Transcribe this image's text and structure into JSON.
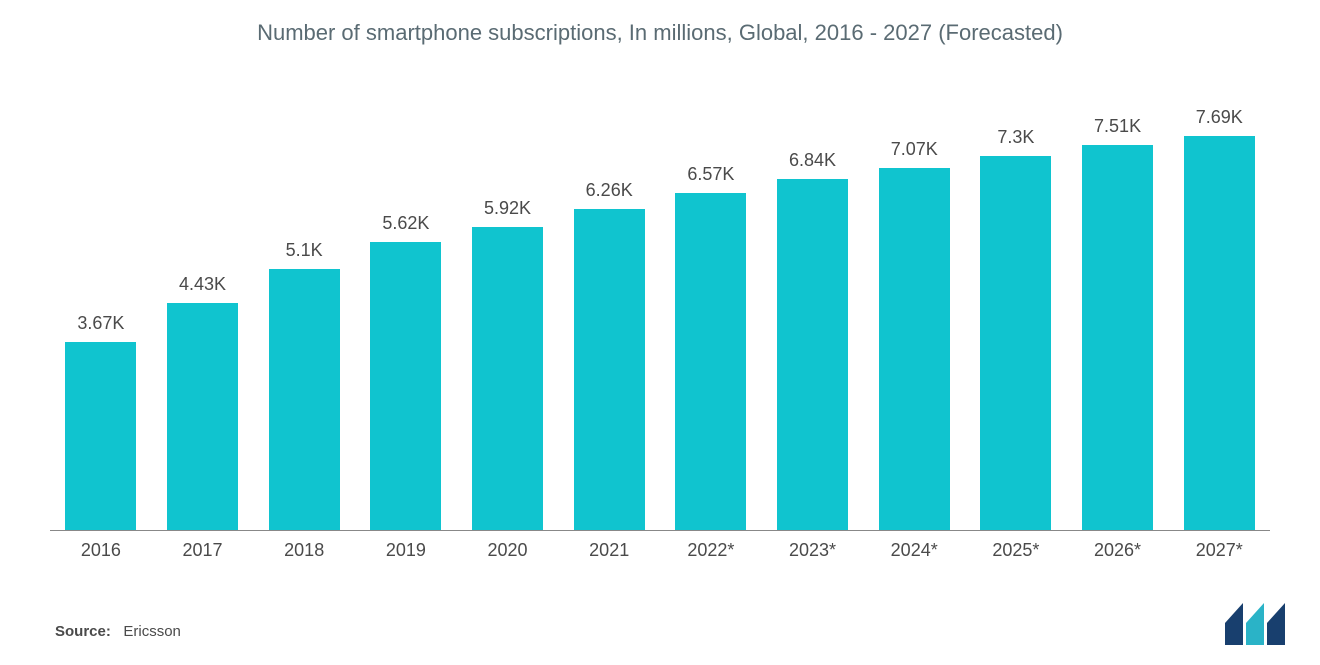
{
  "chart": {
    "type": "bar",
    "title": "Number of smartphone subscriptions, In millions, Global, 2016 - 2027 (Forecasted)",
    "title_fontsize": 22,
    "title_color": "#5a6b73",
    "categories": [
      "2016",
      "2017",
      "2018",
      "2019",
      "2020",
      "2021",
      "2022*",
      "2023*",
      "2024*",
      "2025*",
      "2026*",
      "2027*"
    ],
    "values": [
      3.67,
      4.43,
      5.1,
      5.62,
      5.92,
      6.26,
      6.57,
      6.84,
      7.07,
      7.3,
      7.51,
      7.69
    ],
    "value_labels": [
      "3.67K",
      "4.43K",
      "5.1K",
      "5.62K",
      "5.92K",
      "6.26K",
      "6.57K",
      "6.84K",
      "7.07K",
      "7.3K",
      "7.51K",
      "7.69K"
    ],
    "bar_color": "#10c4cf",
    "bar_width_pct": 70,
    "value_label_fontsize": 18,
    "value_label_color": "#4a4a4a",
    "x_label_fontsize": 18,
    "x_label_color": "#4a4a4a",
    "ylim": [
      0,
      8.0
    ],
    "background_color": "#ffffff",
    "axis_line_color": "#888888"
  },
  "footer": {
    "source_label": "Source:",
    "source_value": "Ericsson",
    "fontsize": 15,
    "color": "#4a4a4a"
  },
  "logo": {
    "colors": [
      "#183f6e",
      "#2ab3c7"
    ]
  }
}
